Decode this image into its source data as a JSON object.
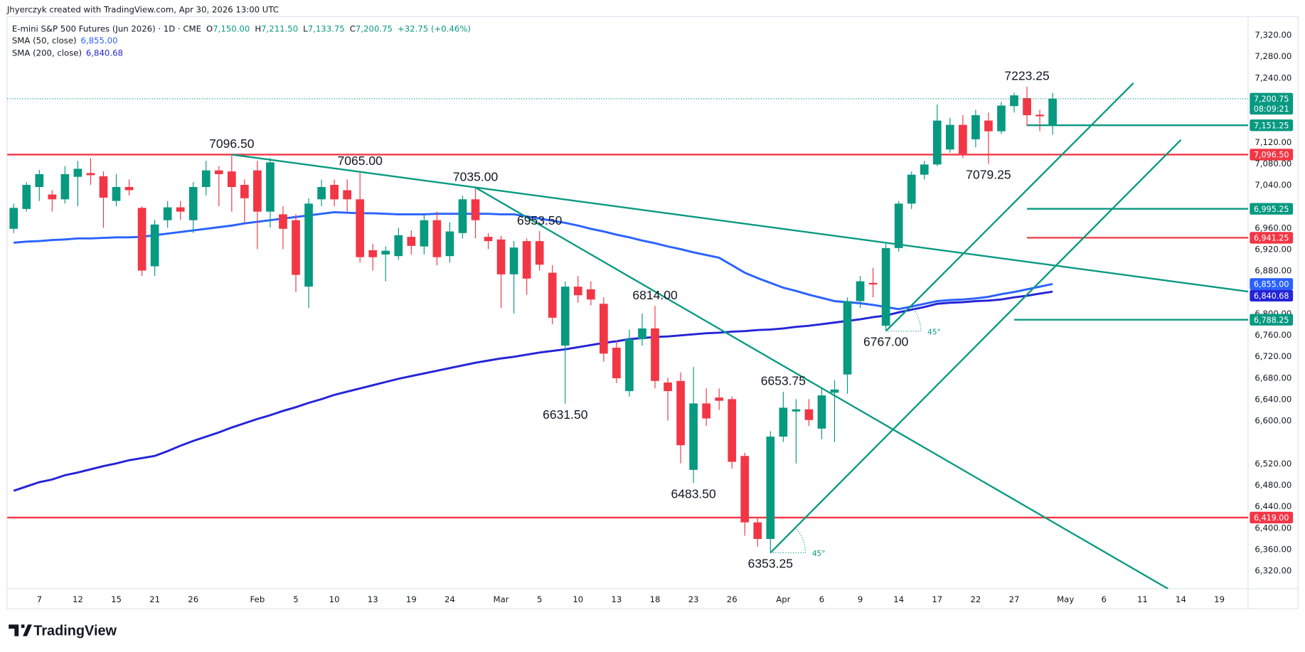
{
  "header": {
    "credit": "Jhyerczyk created with TradingView.com, Apr 30, 2026 13:00 UTC",
    "symbol": "E-mini S&P 500 Futures (Jun 2026) · 1D · CME",
    "ohlc": [
      [
        "O",
        "7,150.00"
      ],
      [
        "H",
        "7,211.50"
      ],
      [
        "L",
        "7,133.75"
      ],
      [
        "C",
        "7,200.75"
      ]
    ],
    "change": "+32.75 (+0.46%)"
  },
  "footer": {
    "brand": "TradingView"
  },
  "chart_data": {
    "type": "candlestick",
    "up_color": "#089981",
    "down_color": "#f23645",
    "grid": false,
    "categories": [
      null,
      null,
      "7",
      null,
      null,
      "12",
      null,
      null,
      "15",
      null,
      null,
      "21",
      null,
      null,
      "26",
      null,
      null,
      null,
      null,
      "Feb",
      null,
      null,
      "5",
      null,
      null,
      "10",
      null,
      null,
      "13",
      null,
      null,
      "19",
      null,
      null,
      "24",
      null,
      null,
      null,
      "Mar",
      null,
      null,
      "5",
      null,
      null,
      "10",
      null,
      null,
      "13",
      null,
      null,
      "18",
      null,
      null,
      "23",
      null,
      null,
      "26",
      null,
      null,
      null,
      "Apr",
      null,
      null,
      "6",
      null,
      null,
      "9",
      null,
      null,
      "14",
      null,
      null,
      "17",
      null,
      null,
      "22",
      null,
      null,
      "27",
      null,
      null,
      null,
      "May",
      null,
      null,
      "6",
      null,
      null,
      "11",
      null,
      null,
      "14",
      null,
      null,
      "19",
      null,
      null
    ],
    "open": [
      6958,
      6995,
      7036,
      7022,
      7013,
      7055,
      7062,
      7056,
      7010,
      7036,
      6997,
      6888,
      6974,
      6998,
      6974,
      7036,
      7067,
      7065,
      7040,
      7067,
      6990,
      6985,
      6974,
      6850,
      7013,
      7040,
      7030,
      7013,
      6918,
      6910,
      6907,
      6943,
      6925,
      6974,
      6907,
      6950,
      7013,
      6943,
      6938,
      6873,
      6935,
      6935,
      6876,
      6740,
      6850,
      6845,
      6818,
      6736,
      6655,
      6752,
      6772,
      6671,
      6674,
      6508,
      6632,
      6643,
      6640,
      6534,
      6410,
      6379,
      6570,
      6617,
      6621,
      6585,
      6652,
      6686,
      6823,
      6857,
      6777,
      6922,
      7005,
      7059,
      7078,
      7106,
      7152,
      7125,
      7160,
      7140,
      7187,
      7202,
      7171,
      7150,
      null,
      null,
      null,
      null,
      null,
      null,
      null,
      null,
      null,
      null,
      null,
      null,
      null,
      null,
      null
    ],
    "high": [
      7005,
      7045,
      7068,
      7030,
      7075,
      7085,
      7090,
      7065,
      7060,
      7050,
      7000,
      6975,
      7010,
      7010,
      7045,
      7085,
      7075,
      7096.5,
      7050,
      7085,
      7090,
      7000,
      6985,
      7015,
      7050,
      7050,
      7050,
      7065,
      6930,
      6925,
      6960,
      6955,
      6985,
      6990,
      6970,
      7020,
      7035,
      6950,
      6945,
      6935,
      6940,
      6953.5,
      6890,
      6860,
      6870,
      6860,
      6830,
      6750,
      6770,
      6800,
      6814,
      6680,
      6690,
      6700,
      6660,
      6660,
      6645,
      6540,
      6420,
      6580,
      6653.75,
      6640,
      6640,
      6660,
      6675,
      6830,
      6870,
      6885,
      6930,
      7010,
      7065,
      7085,
      7190,
      7165,
      7170,
      7180,
      7175,
      7195,
      7212,
      7223.25,
      7180,
      7211.5,
      null,
      null,
      null,
      null,
      null,
      null,
      null,
      null,
      null,
      null,
      null,
      null,
      null,
      null,
      null
    ],
    "low": [
      6950,
      6990,
      7010,
      6990,
      7005,
      7000,
      7040,
      6960,
      7000,
      7020,
      6870,
      6870,
      6960,
      6975,
      6950,
      7020,
      7000,
      6990,
      6970,
      6920,
      6960,
      6920,
      6840,
      6810,
      7000,
      7000,
      6990,
      6895,
      6880,
      6860,
      6900,
      6910,
      6910,
      6890,
      6895,
      6940,
      6940,
      6920,
      6810,
      6800,
      6835,
      6880,
      6780,
      6631.5,
      6820,
      6815,
      6710,
      6670,
      6645,
      6740,
      6660,
      6600,
      6520,
      6483.5,
      6590,
      6620,
      6510,
      6385,
      6365,
      6353.25,
      6560,
      6520,
      6590,
      6565,
      6560,
      6650,
      6810,
      6830,
      6767,
      6915,
      6995,
      7050,
      7075,
      7100,
      7090,
      7110,
      7079.25,
      7135,
      7175,
      7150,
      7140,
      7133.75,
      null,
      null,
      null,
      null,
      null,
      null,
      null,
      null,
      null,
      null,
      null,
      null,
      null,
      null,
      null
    ],
    "close": [
      6997,
      7040,
      7060,
      7013,
      7060,
      7070,
      7058,
      7016,
      7036,
      7030,
      6880,
      6966,
      6998,
      6990,
      7036,
      7067,
      7060,
      7036,
      7015,
      6990,
      7082,
      6958,
      6872,
      7005,
      7036,
      7013,
      7013,
      6905,
      6905,
      6917,
      6946,
      6926,
      6974,
      6905,
      6953,
      7013,
      6974,
      6935,
      6873,
      6923,
      6865,
      6891,
      6792,
      6850,
      6834,
      6826,
      6725,
      6679,
      6752,
      6772,
      6674,
      6655,
      6554,
      6632,
      6604,
      6637,
      6523,
      6410,
      6379,
      6570,
      6624,
      6621,
      6601,
      6647,
      6658,
      6823,
      6860,
      6854,
      6922,
      7005,
      7059,
      7078,
      7160,
      7152,
      7098,
      7170,
      7140,
      7188,
      7207,
      7170,
      7168,
      7200.75,
      null,
      null,
      null,
      null,
      null,
      null,
      null,
      null,
      null,
      null,
      null,
      null,
      null,
      null,
      null
    ],
    "last_price": {
      "label": "7,200.75",
      "countdown": "08:09:21"
    },
    "overlays": [
      {
        "name": "SMA (50, close)",
        "color": "#2962ff",
        "value_label": "6,855.00",
        "values": [
          6932,
          6934,
          6935,
          6937,
          6938,
          6940,
          6940,
          6941,
          6942,
          6942,
          6943,
          6946,
          6949,
          6952,
          6955,
          6958,
          6961,
          6964,
          6968,
          6971,
          6974,
          6977,
          6980,
          6983,
          6986,
          6989,
          6988,
          6987,
          6987,
          6986,
          6985,
          6985,
          6985,
          6986,
          6986,
          6986,
          6986,
          6986,
          6985,
          6985,
          6981,
          6977,
          6973,
          6969,
          6964,
          6958,
          6953,
          6947,
          6942,
          6936,
          6931,
          6925,
          6920,
          6914,
          6909,
          6904,
          6890,
          6876,
          6866,
          6857,
          6848,
          6842,
          6835,
          6829,
          6823,
          6821,
          6819,
          6816,
          6812,
          6808,
          6813,
          6818,
          6823,
          6825,
          6826,
          6828,
          6831,
          6836,
          6840,
          6845,
          6850,
          6855,
          null,
          null,
          null,
          null,
          null,
          null,
          null,
          null,
          null,
          null,
          null,
          null,
          null,
          null,
          null
        ]
      },
      {
        "name": "SMA (200, close)",
        "color": "#2424d8",
        "value_label": "6,840.68",
        "values": [
          6469,
          6477,
          6485,
          6490,
          6498,
          6503,
          6509,
          6515,
          6520,
          6526,
          6530,
          6534,
          6543,
          6553,
          6562,
          6570,
          6578,
          6587,
          6595,
          6603,
          6610,
          6618,
          6625,
          6633,
          6640,
          6648,
          6654,
          6660,
          6666,
          6672,
          6678,
          6683,
          6688,
          6693,
          6698,
          6703,
          6708,
          6712,
          6716,
          6719,
          6723,
          6727,
          6730,
          6733,
          6737,
          6741,
          6745,
          6748,
          6752,
          6754,
          6756,
          6757,
          6759,
          6761,
          6763,
          6764,
          6766,
          6767,
          6769,
          6770,
          6772,
          6775,
          6777,
          6780,
          6783,
          6786,
          6789,
          6793,
          6796,
          6802,
          6807,
          6812,
          6818,
          6820,
          6821,
          6823,
          6824,
          6826,
          6830,
          6833,
          6837,
          6840.68,
          null,
          null,
          null,
          null,
          null,
          null,
          null,
          null,
          null,
          null,
          null,
          null,
          null,
          null,
          null
        ]
      }
    ],
    "hlines": [
      {
        "value": 7096.5,
        "label": "7,096.50",
        "color": "#f23645"
      },
      {
        "value": 6419,
        "label": "6,419.00",
        "color": "#f23645"
      },
      {
        "value": 7151.25,
        "label": "7,151.25",
        "color": "#089981",
        "from": 79
      },
      {
        "value": 6995.25,
        "label": "6,995.25",
        "color": "#089981",
        "from": 79
      },
      {
        "value": 6941.25,
        "label": "6,941.25",
        "color": "#f23645",
        "from": 79
      },
      {
        "value": 6788.25,
        "label": "6,788.25",
        "color": "#089981",
        "from": 78
      }
    ],
    "trendlines": [
      {
        "color": "#089981",
        "points": [
          [
            17,
            7096.5
          ],
          [
            96.5,
            6840
          ]
        ]
      },
      {
        "color": "#089981",
        "points": [
          [
            36,
            7035
          ],
          [
            90,
            6286
          ]
        ]
      },
      {
        "color": "#089981",
        "points": [
          [
            59,
            6353.25
          ],
          [
            91,
            7124
          ]
        ],
        "angle_label": "45°"
      },
      {
        "color": "#089981",
        "points": [
          [
            68,
            6767
          ],
          [
            87.3,
            7230
          ]
        ],
        "angle_label": "45°"
      }
    ],
    "annotations": [
      {
        "text": "7096.50",
        "x": 17,
        "y": 7096.5
      },
      {
        "text": "7065.00",
        "x": 27,
        "y": 7065
      },
      {
        "text": "7035.00",
        "x": 36,
        "y": 7035
      },
      {
        "text": "6953.50",
        "x": 41,
        "y": 6953.5
      },
      {
        "text": "6814.00",
        "x": 50,
        "y": 6814
      },
      {
        "text": "6631.50",
        "x": 43,
        "y": 6631.5
      },
      {
        "text": "6483.50",
        "x": 53,
        "y": 6483.5
      },
      {
        "text": "6353.25",
        "x": 59,
        "y": 6353.25
      },
      {
        "text": "6653.75",
        "x": 60,
        "y": 6653.75
      },
      {
        "text": "6767.00",
        "x": 68,
        "y": 6767
      },
      {
        "text": "7079.25",
        "x": 76,
        "y": 7079.25
      },
      {
        "text": "7223.25",
        "x": 79,
        "y": 7223.25
      }
    ],
    "ylim": [
      6286,
      7354
    ],
    "yticks": [
      {
        "value": 7320,
        "label": "7,320.00"
      },
      {
        "value": 7280,
        "label": "7,280.00"
      },
      {
        "value": 7240,
        "label": "7,240.00"
      },
      {
        "value": 7120,
        "label": "7,120.00"
      },
      {
        "value": 7080,
        "label": "7,080.00"
      },
      {
        "value": 7040,
        "label": "7,040.00"
      },
      {
        "value": 6960,
        "label": "6,960.00"
      },
      {
        "value": 6920,
        "label": "6,920.00"
      },
      {
        "value": 6880,
        "label": "6,880.00"
      },
      {
        "value": 6800,
        "label": "6,800.00"
      },
      {
        "value": 6760,
        "label": "6,760.00"
      },
      {
        "value": 6720,
        "label": "6,720.00"
      },
      {
        "value": 6680,
        "label": "6,680.00"
      },
      {
        "value": 6640,
        "label": "6,640.00"
      },
      {
        "value": 6600,
        "label": "6,600.00"
      },
      {
        "value": 6520,
        "label": "6,520.00"
      },
      {
        "value": 6480,
        "label": "6,480.00"
      },
      {
        "value": 6440,
        "label": "6,440.00"
      },
      {
        "value": 6400,
        "label": "6,400.00"
      },
      {
        "value": 6360,
        "label": "6,360.00"
      },
      {
        "value": 6320,
        "label": "6,320.00"
      }
    ]
  }
}
